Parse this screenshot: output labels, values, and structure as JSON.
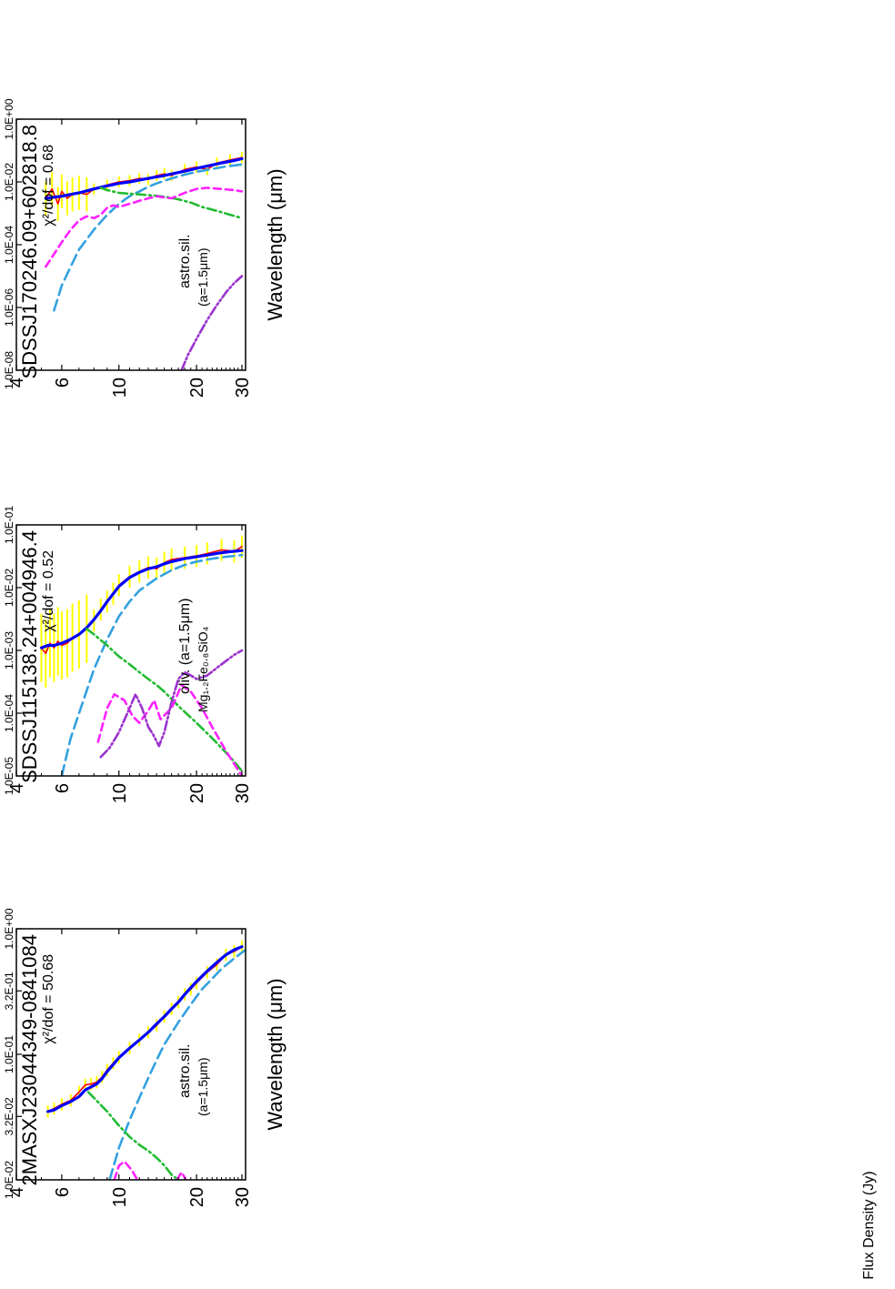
{
  "figure": {
    "ylabel": "Flux Density (Jy)",
    "xlabel": "Wavelength (μm)"
  },
  "legend": {
    "colors": {
      "data": "#ff0000",
      "errorbars": "#ffff00",
      "total_fit": "#0000ff",
      "component_1": "#33a0e0",
      "component_2": "#22bb33",
      "component_3": "#ff22ff",
      "component_4": "#9933cc"
    }
  },
  "chart_data": [
    {
      "type": "line",
      "title": "2MASXJ23044349-0841084",
      "annotation": "χ²/dof = 50.68",
      "dust_label": "astro.sil.",
      "dust_size": "(a=1.5μm)",
      "xlabel": "Wavelength (μm)",
      "ylabel": "Flux Density (Jy)",
      "xscale": "log",
      "yscale": "log",
      "xlim": [
        4,
        31
      ],
      "ylim": [
        0.01,
        1.0
      ],
      "xticks": [
        4,
        6,
        10,
        20,
        30
      ],
      "yticks": [
        1.0,
        0.32,
        0.1,
        0.032,
        0.01
      ],
      "yticklabels": [
        "1.0E+00",
        "3.2E-01",
        "1.0E-01",
        "3.2E-02",
        "1.0E-02"
      ],
      "series": [
        {
          "style": "data",
          "x": [
            5.3,
            5.6,
            6.0,
            6.5,
            7.0,
            7.4,
            7.8,
            8.2,
            8.6,
            9.0,
            9.5,
            10.0,
            11.0,
            12.0,
            13.0,
            14.0,
            15.0,
            16.0,
            17.0,
            18.0,
            19.0,
            20.0,
            22.0,
            24.0,
            26.0,
            28.0,
            30.0
          ],
          "y": [
            0.035,
            0.037,
            0.04,
            0.043,
            0.05,
            0.057,
            0.058,
            0.06,
            0.066,
            0.075,
            0.085,
            0.095,
            0.112,
            0.13,
            0.15,
            0.17,
            0.2,
            0.23,
            0.26,
            0.3,
            0.33,
            0.37,
            0.45,
            0.52,
            0.62,
            0.66,
            0.72
          ]
        },
        {
          "style": "model",
          "x": [
            5.3,
            5.6,
            6.0,
            6.5,
            7.0,
            7.4,
            7.8,
            8.2,
            8.6,
            9.0,
            9.5,
            10.0,
            11.0,
            12.0,
            13.0,
            14.0,
            15.0,
            16.0,
            17.0,
            18.0,
            19.0,
            20.0,
            22.0,
            24.0,
            26.0,
            28.0,
            30.0
          ],
          "y": [
            0.035,
            0.036,
            0.039,
            0.042,
            0.046,
            0.052,
            0.055,
            0.058,
            0.064,
            0.073,
            0.083,
            0.094,
            0.112,
            0.13,
            0.15,
            0.175,
            0.2,
            0.23,
            0.26,
            0.3,
            0.34,
            0.38,
            0.46,
            0.54,
            0.62,
            0.68,
            0.72
          ]
        },
        {
          "style": "comp1",
          "x": [
            9.2,
            10.0,
            11.0,
            12.0,
            13.0,
            14.0,
            15.0,
            17.0,
            19.0,
            21.0,
            23.0,
            25.0,
            28.0,
            31.0
          ],
          "y": [
            0.01,
            0.018,
            0.03,
            0.045,
            0.065,
            0.09,
            0.12,
            0.18,
            0.25,
            0.33,
            0.4,
            0.48,
            0.58,
            0.68
          ]
        },
        {
          "style": "comp2",
          "x": [
            7.6,
            8.0,
            9.0,
            10.0,
            11.0,
            12.0,
            13.0,
            14.0,
            15.0,
            16.0,
            17.0
          ],
          "y": [
            0.05,
            0.045,
            0.035,
            0.027,
            0.022,
            0.019,
            0.017,
            0.015,
            0.013,
            0.011,
            0.01
          ]
        },
        {
          "style": "comp3",
          "x": [
            9.6,
            10.0,
            10.5,
            11.2,
            11.8
          ],
          "y": [
            0.01,
            0.013,
            0.014,
            0.012,
            0.01
          ]
        },
        {
          "style": "comp3",
          "x": [
            16.8,
            17.5,
            18.2
          ],
          "y": [
            0.01,
            0.0115,
            0.01
          ]
        }
      ]
    },
    {
      "type": "line",
      "title": "SDSSJ115138.24+004946.4",
      "annotation": "χ²/dof = 0.52",
      "dust_label": "oliv. (a=1.5μm)",
      "dust_size": "Mg₁.₂Fe₀.₈SiO₄",
      "xlabel": "",
      "ylabel": "",
      "xscale": "log",
      "yscale": "log",
      "xlim": [
        4,
        31
      ],
      "ylim": [
        1e-05,
        0.1
      ],
      "xticks": [
        4,
        6,
        10,
        20,
        30
      ],
      "yticks": [
        0.1,
        0.01,
        0.001,
        0.0001,
        1e-05
      ],
      "yticklabels": [
        "1.0E-01",
        "1.0E-02",
        "1.0E-03",
        "1.0E-04",
        "1.0E-05"
      ],
      "series": [
        {
          "style": "data",
          "x": [
            5.0,
            5.2,
            5.4,
            5.6,
            5.8,
            6.0,
            6.3,
            6.6,
            7.0,
            7.5,
            8.0,
            8.5,
            9.0,
            9.5,
            10.0,
            11.0,
            12.0,
            13.0,
            14.0,
            15.0,
            16.0,
            18.0,
            20.0,
            22.0,
            25.0,
            28.0,
            30.0
          ],
          "y": [
            0.0011,
            0.0009,
            0.0013,
            0.0011,
            0.0014,
            0.0012,
            0.0013,
            0.0016,
            0.0018,
            0.0022,
            0.003,
            0.0045,
            0.006,
            0.008,
            0.011,
            0.015,
            0.018,
            0.021,
            0.02,
            0.025,
            0.028,
            0.03,
            0.032,
            0.035,
            0.04,
            0.038,
            0.045
          ]
        },
        {
          "style": "model",
          "x": [
            5.0,
            5.3,
            5.6,
            6.0,
            6.5,
            7.0,
            7.5,
            8.0,
            8.5,
            9.0,
            9.5,
            10.0,
            11.0,
            12.0,
            13.0,
            14.0,
            15.0,
            16.0,
            18.0,
            20.0,
            22.0,
            25.0,
            28.0,
            30.0
          ],
          "y": [
            0.0011,
            0.0012,
            0.0012,
            0.0013,
            0.0015,
            0.0018,
            0.0023,
            0.0031,
            0.0043,
            0.006,
            0.008,
            0.0105,
            0.0145,
            0.0175,
            0.02,
            0.0215,
            0.024,
            0.026,
            0.029,
            0.031,
            0.033,
            0.036,
            0.038,
            0.039
          ]
        },
        {
          "style": "comp1",
          "x": [
            6.0,
            6.5,
            7.0,
            8.0,
            9.0,
            10.0,
            11.0,
            12.0,
            14.0,
            16.0,
            18.0,
            20.0,
            23.0,
            26.0,
            30.0
          ],
          "y": [
            1e-05,
            4e-05,
            0.0001,
            0.0005,
            0.0015,
            0.0035,
            0.006,
            0.009,
            0.014,
            0.019,
            0.023,
            0.026,
            0.029,
            0.031,
            0.033
          ]
        },
        {
          "style": "comp2",
          "x": [
            7.5,
            8.0,
            9.0,
            10.0,
            11.0,
            12.0,
            13.0,
            14.0,
            15.0,
            17.0,
            20.0,
            23.0,
            27.0,
            30.0
          ],
          "y": [
            0.0022,
            0.0018,
            0.0012,
            0.0008,
            0.0006,
            0.00045,
            0.00035,
            0.00028,
            0.00022,
            0.00013,
            7e-05,
            4e-05,
            2e-05,
            1.2e-05
          ]
        },
        {
          "style": "comp3",
          "x": [
            8.3,
            9.0,
            9.6,
            10.5,
            11.3,
            12.0,
            13.0,
            13.7,
            14.5,
            16.0,
            17.5,
            19.0,
            21.0,
            23.0,
            26.0,
            30.0
          ],
          "y": [
            3.5e-05,
            0.00012,
            0.0002,
            0.00016,
            9e-05,
            7e-05,
            0.00011,
            0.00016,
            8e-05,
            0.00012,
            0.00028,
            0.00022,
            0.00012,
            6e-05,
            2.5e-05,
            1e-05
          ]
        },
        {
          "style": "comp4",
          "x": [
            8.5,
            9.2,
            10.0,
            11.0,
            11.6,
            12.3,
            13.0,
            13.6,
            14.3,
            15.0,
            16.0,
            17.0,
            18.0,
            19.0,
            20.0,
            22.0,
            25.0,
            28.0,
            30.0
          ],
          "y": [
            2e-05,
            2.8e-05,
            5e-05,
            0.00012,
            0.0002,
            0.00012,
            6e-05,
            4.5e-05,
            3e-05,
            5e-05,
            0.00015,
            0.00035,
            0.00045,
            0.0004,
            0.00035,
            0.0004,
            0.0006,
            0.00085,
            0.001
          ]
        }
      ]
    },
    {
      "type": "line",
      "title": "SDSSJ170246.09+602818.8",
      "annotation": "χ²/dof = 0.68",
      "dust_label": "astro.sil.",
      "dust_size": "(a=1.5μm)",
      "xlabel": "Wavelength (μm)",
      "ylabel": "",
      "xscale": "log",
      "yscale": "log",
      "xlim": [
        4,
        31
      ],
      "ylim": [
        1e-08,
        1.0
      ],
      "xticks": [
        4,
        6,
        10,
        20,
        30
      ],
      "yticks": [
        1.0,
        0.01,
        0.0001,
        1e-06,
        1e-08
      ],
      "yticklabels": [
        "1.0E+00",
        "1.0E-02",
        "1.0E-04",
        "1.0E-06",
        "1.0E-08"
      ],
      "series": [
        {
          "style": "data",
          "x": [
            5.2,
            5.5,
            5.8,
            6.0,
            6.3,
            6.6,
            7.0,
            7.5,
            8.0,
            9.0,
            10.0,
            11.0,
            12.0,
            13.0,
            14.0,
            15.0,
            16.0,
            18.0,
            20.0,
            22.0,
            24.0,
            27.0,
            30.0
          ],
          "y": [
            0.003,
            0.006,
            0.002,
            0.005,
            0.003,
            0.004,
            0.0045,
            0.004,
            0.006,
            0.008,
            0.01,
            0.011,
            0.013,
            0.012,
            0.016,
            0.018,
            0.016,
            0.025,
            0.03,
            0.025,
            0.04,
            0.05,
            0.06
          ]
        },
        {
          "style": "model",
          "x": [
            5.2,
            5.5,
            6.0,
            6.5,
            7.0,
            7.5,
            8.0,
            9.0,
            10.0,
            11.0,
            12.0,
            13.0,
            14.0,
            15.0,
            16.0,
            18.0,
            20.0,
            22.0,
            25.0,
            28.0,
            30.0
          ],
          "y": [
            0.003,
            0.0032,
            0.0035,
            0.004,
            0.0045,
            0.0052,
            0.006,
            0.0075,
            0.009,
            0.01,
            0.0115,
            0.013,
            0.0145,
            0.016,
            0.018,
            0.022,
            0.027,
            0.032,
            0.04,
            0.048,
            0.055
          ]
        },
        {
          "style": "comp1",
          "x": [
            5.6,
            6.0,
            6.5,
            7.0,
            8.0,
            9.0,
            10.0,
            11.0,
            12.0,
            13.0,
            14.0,
            16.0,
            18.0,
            20.0,
            23.0,
            26.0,
            30.0
          ],
          "y": [
            8e-07,
            5e-06,
            2e-05,
            7e-05,
            0.0003,
            0.0009,
            0.002,
            0.0035,
            0.005,
            0.007,
            0.009,
            0.013,
            0.017,
            0.021,
            0.026,
            0.031,
            0.036
          ]
        },
        {
          "style": "comp2",
          "x": [
            8.5,
            9.0,
            10.0,
            11.0,
            12.0,
            13.0,
            14.0,
            15.0,
            17.0,
            19.0,
            21.0,
            24.0,
            27.0,
            30.0
          ],
          "y": [
            0.0065,
            0.0055,
            0.0045,
            0.0042,
            0.004,
            0.0038,
            0.0036,
            0.0034,
            0.0028,
            0.0022,
            0.0016,
            0.0012,
            0.0009,
            0.0007
          ]
        },
        {
          "style": "comp3",
          "x": [
            5.2,
            5.6,
            6.0,
            6.5,
            7.0,
            7.5,
            8.0,
            8.5,
            9.0,
            9.5,
            10.0,
            11.0,
            12.0,
            13.0,
            14.0,
            15.0,
            16.0,
            18.0,
            20.0,
            22.0,
            25.0,
            28.0,
            30.0
          ],
          "y": [
            2e-05,
            5e-05,
            0.00012,
            0.0003,
            0.0006,
            0.0008,
            0.0007,
            0.0009,
            0.0015,
            0.0018,
            0.0016,
            0.002,
            0.0025,
            0.003,
            0.0035,
            0.0032,
            0.003,
            0.0045,
            0.006,
            0.0065,
            0.006,
            0.0055,
            0.005
          ]
        },
        {
          "style": "comp4",
          "x": [
            17.5,
            18.5,
            20.0,
            22.0,
            24.0,
            26.0,
            28.0,
            30.0
          ],
          "y": [
            1e-08,
            3e-08,
            1e-07,
            4e-07,
            1.2e-06,
            3e-06,
            6e-06,
            1e-05
          ]
        }
      ]
    }
  ]
}
